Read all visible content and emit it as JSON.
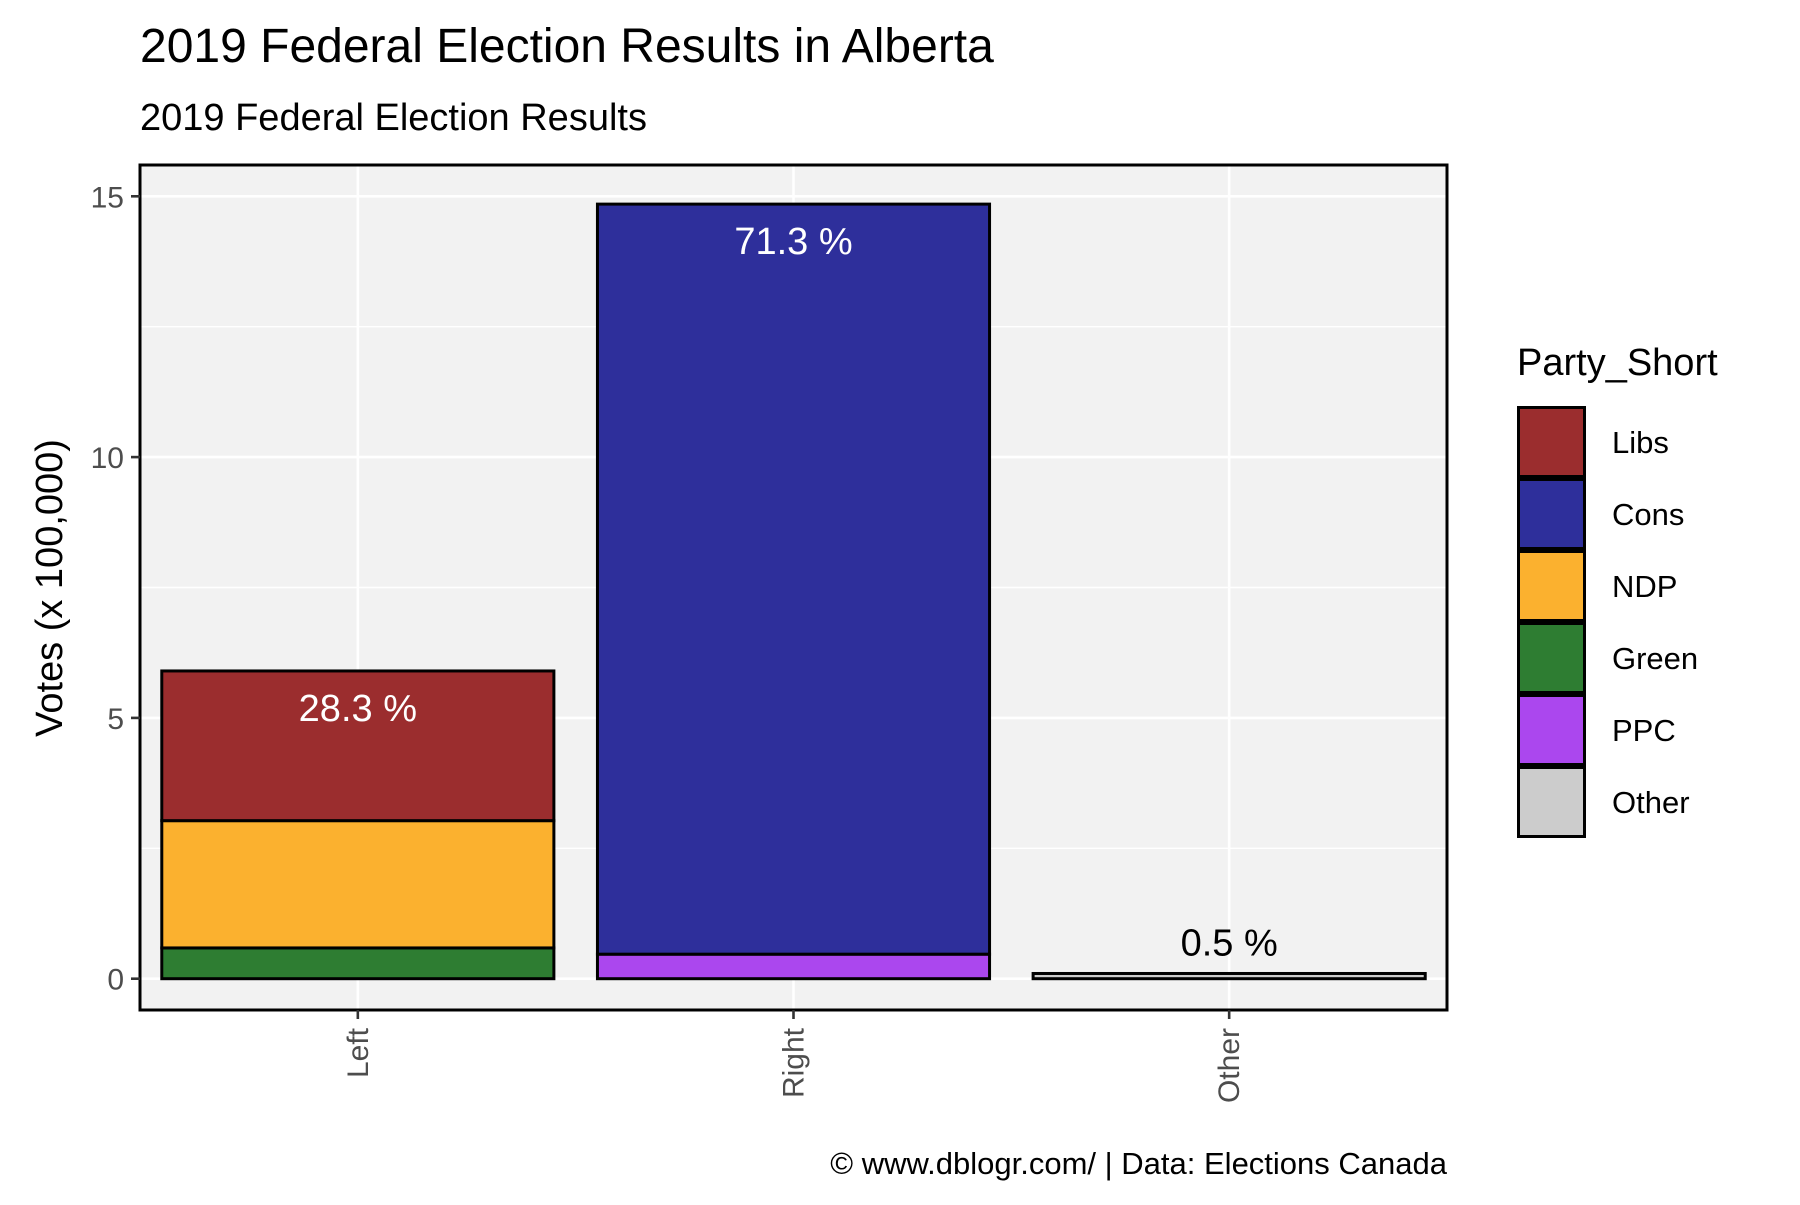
{
  "chart_data": {
    "type": "bar",
    "stacked": true,
    "title": "2019 Federal Election Results in Alberta",
    "subtitle": "2019 Federal Election Results",
    "xlabel": "",
    "ylabel": "Votes (x 100,000)",
    "ylim": [
      -0.6,
      15.6
    ],
    "yticks": [
      0,
      5,
      10,
      15
    ],
    "categories": [
      "Left",
      "Right",
      "Other"
    ],
    "series": [
      {
        "name": "Libs",
        "color": "#9B2D2E",
        "values": [
          2.87,
          0,
          0
        ]
      },
      {
        "name": "Cons",
        "color": "#2E2F9B",
        "values": [
          0,
          14.38,
          0
        ]
      },
      {
        "name": "NDP",
        "color": "#FBB12F",
        "values": [
          2.44,
          0,
          0
        ]
      },
      {
        "name": "Green",
        "color": "#2E7D32",
        "values": [
          0.59,
          0,
          0
        ]
      },
      {
        "name": "PPC",
        "color": "#AB47EE",
        "values": [
          0,
          0.47,
          0
        ]
      },
      {
        "name": "Other",
        "color": "#CCCCCC",
        "values": [
          0,
          0,
          0.1
        ]
      }
    ],
    "stack_order_bottom_to_top": [
      "Green",
      "PPC",
      "Other",
      "NDP",
      "Cons",
      "Libs"
    ],
    "bar_labels": [
      {
        "category": "Left",
        "text": "28.3 %",
        "color": "#ffffff"
      },
      {
        "category": "Right",
        "text": "71.3 %",
        "color": "#ffffff"
      },
      {
        "category": "Other",
        "text": "0.5 %",
        "color": "#000000"
      }
    ],
    "legend": {
      "title": "Party_Short",
      "position": "right"
    },
    "grid": true,
    "panel_background": "#F2F2F2",
    "caption": "© www.dblogr.com/  |  Data: Elections Canada"
  }
}
